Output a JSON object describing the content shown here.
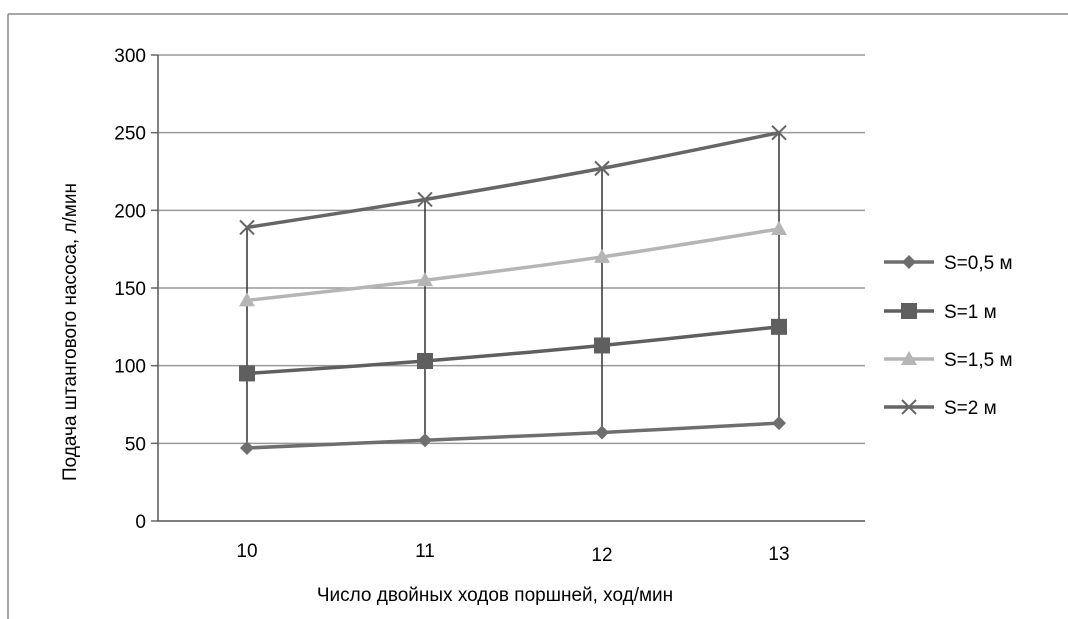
{
  "chart_data": {
    "type": "line",
    "title": "",
    "xlabel": "Число двойных ходов поршней, ход/мин",
    "ylabel": "Подача штангового насоса, л/мин",
    "categories": [
      "10",
      "11",
      "12",
      "13"
    ],
    "x": [
      10,
      11,
      12,
      13
    ],
    "ylim": [
      0,
      300
    ],
    "yticks": [
      "0",
      "50",
      "100",
      "150",
      "200",
      "250",
      "300"
    ],
    "grid": true,
    "legend_position": "right",
    "series": [
      {
        "name": "S=0,5 м",
        "values": [
          47,
          52,
          57,
          63
        ],
        "color": "#6e6e6e",
        "marker": "diamond"
      },
      {
        "name": "S=1 м",
        "values": [
          95,
          103,
          113,
          125
        ],
        "color": "#5f5f5f",
        "marker": "square"
      },
      {
        "name": "S=1,5 м",
        "values": [
          142,
          155,
          170,
          188
        ],
        "color": "#b5b5b5",
        "marker": "triangle"
      },
      {
        "name": "S=2 м",
        "values": [
          189,
          207,
          227,
          250
        ],
        "color": "#666666",
        "marker": "x"
      }
    ]
  }
}
